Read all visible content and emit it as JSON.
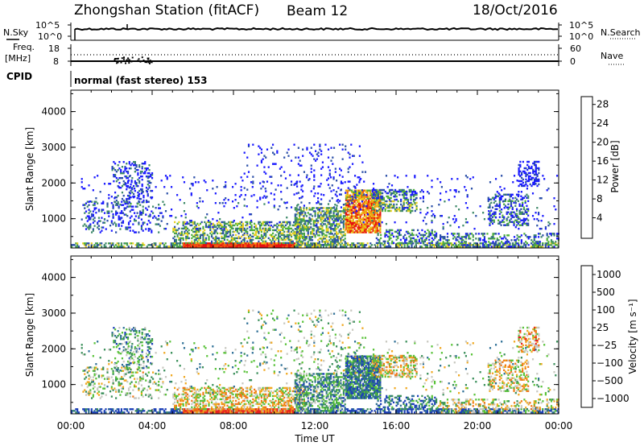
{
  "header": {
    "station": "Zhongshan Station (fitACF)",
    "beam": "Beam 12",
    "date": "18/Oct/2016"
  },
  "top_panels": {
    "nsky_label": "N.Sky",
    "nsky_ticks": [
      "10^5",
      "10^0"
    ],
    "nsearch_label": "N.Search",
    "nsearch_ticks": [
      "10^5",
      "10^0"
    ],
    "freq_label_1": "Freq.",
    "freq_label_2": "[MHz]",
    "freq_ticks": [
      "18",
      "8"
    ],
    "nave_label": "Nave",
    "nave_ticks": [
      "60",
      "0"
    ],
    "cpid_label": "CPID",
    "cpid_text": "normal (fast stereo) 153"
  },
  "chart_data": [
    {
      "type": "heatmap",
      "name": "power-panel",
      "ylabel": "Slant Range [km]",
      "ylim": [
        180,
        4600
      ],
      "y_ticks": [
        "1000",
        "2000",
        "3000",
        "4000"
      ],
      "y_tick_values": [
        1000,
        2000,
        3000,
        4000
      ],
      "xlim": [
        0,
        24
      ],
      "colorbar": {
        "label": "Power [dB]",
        "ticks": [
          "4",
          "8",
          "12",
          "16",
          "20",
          "24",
          "28"
        ],
        "tick_values": [
          4,
          8,
          12,
          16,
          20,
          24,
          28
        ],
        "range": [
          0,
          30
        ]
      }
    },
    {
      "type": "heatmap",
      "name": "velocity-panel",
      "ylabel": "Slant Range [km]",
      "ylim": [
        180,
        4600
      ],
      "y_ticks": [
        "1000",
        "2000",
        "3000",
        "4000"
      ],
      "y_tick_values": [
        1000,
        2000,
        3000,
        4000
      ],
      "xlim": [
        0,
        24
      ],
      "colorbar": {
        "label": "Velocity [m s⁻¹]",
        "ticks": [
          "1000",
          "500",
          "100",
          "25",
          "−25",
          "−100",
          "−500",
          "−1000"
        ]
      }
    }
  ],
  "time_axis": {
    "label": "Time UT",
    "ticks": [
      "00:00",
      "04:00",
      "08:00",
      "12:00",
      "16:00",
      "20:00",
      "00:00"
    ],
    "tick_hours": [
      0,
      4,
      8,
      12,
      16,
      20,
      24
    ]
  },
  "colors": {
    "power": [
      "#1a1aff",
      "#2b4fa8",
      "#3f8a6a",
      "#4fb03a",
      "#e8d020",
      "#f0a010",
      "#f05a10",
      "#e61010"
    ],
    "velocity": [
      "#1c3fb8",
      "#2e6f96",
      "#3a8f5a",
      "#58c238",
      "#c8c8c0",
      "#f0a820",
      "#f07818",
      "#e82020"
    ]
  }
}
